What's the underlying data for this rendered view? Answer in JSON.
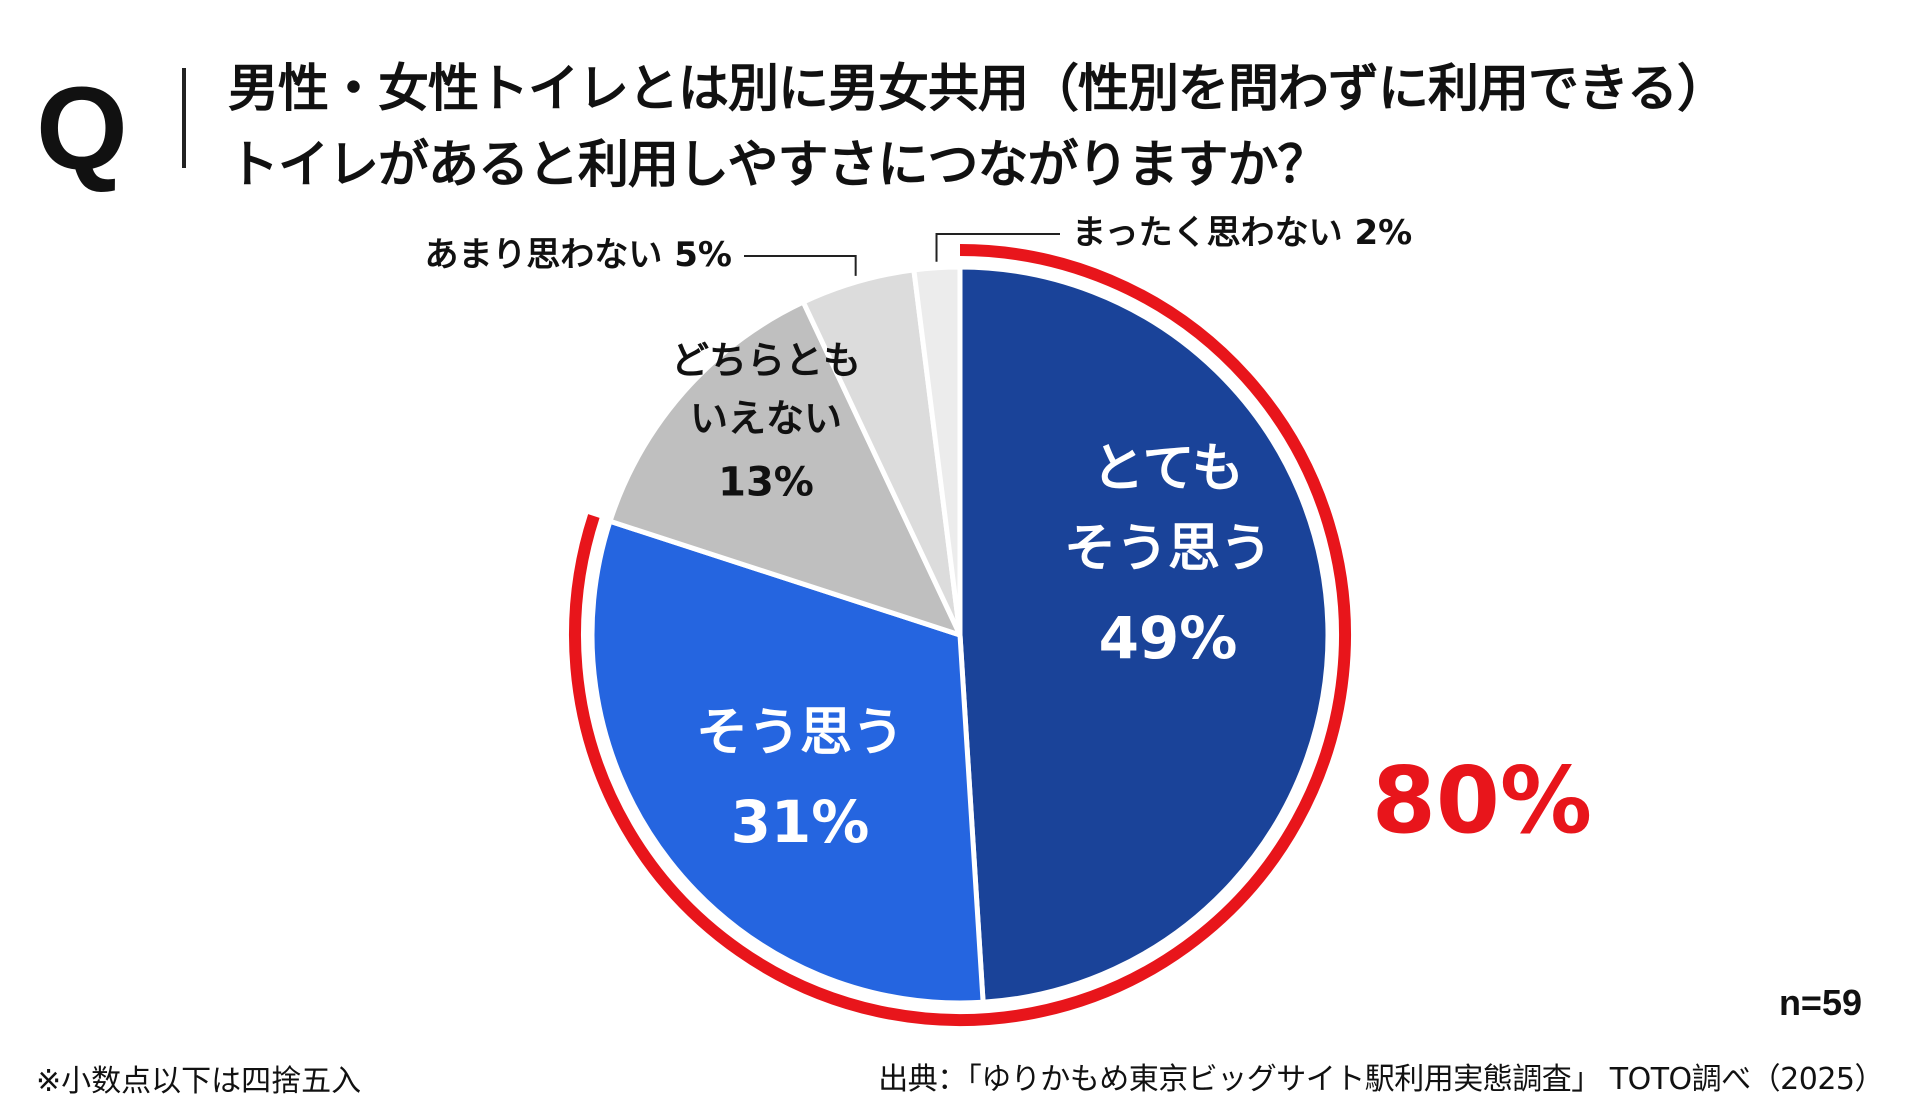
{
  "header": {
    "q_mark": "Q",
    "question_line1": "男性・女性トイレとは別に男女共用（性別を問わずに利用できる）",
    "question_line2": "トイレがあると利用しやすさにつながりますか？"
  },
  "chart_data": {
    "type": "pie",
    "slices": [
      {
        "label_lines": [
          "とても",
          "そう思う"
        ],
        "value": 49,
        "value_text": "49%",
        "color": "#1a4399",
        "text_color": "#ffffff"
      },
      {
        "label_lines": [
          "そう思う"
        ],
        "value": 31,
        "value_text": "31%",
        "color": "#2565e0",
        "text_color": "#ffffff"
      },
      {
        "label_lines": [
          "どちらとも",
          "いえない"
        ],
        "value": 13,
        "value_text": "13%",
        "color": "#bfbfbf",
        "text_color": "#111111"
      },
      {
        "label_lines": [
          "あまり思わない"
        ],
        "value": 5,
        "value_text": "5%",
        "color": "#dcdcdc",
        "text_color": "#111111"
      },
      {
        "label_lines": [
          "まったく思わない"
        ],
        "value": 2,
        "value_text": "2%",
        "color": "#ececec",
        "text_color": "#111111"
      }
    ],
    "highlight": {
      "value_text": "80%",
      "color": "#e8151b",
      "covers": [
        "とても そう思う",
        "そう思う"
      ]
    }
  },
  "sample_size": "n=59",
  "footnote": "※小数点以下は四捨五入",
  "source": "出典：「ゆりかもめ東京ビッグサイト駅利用実態調査」 TOTO調べ（2025）"
}
